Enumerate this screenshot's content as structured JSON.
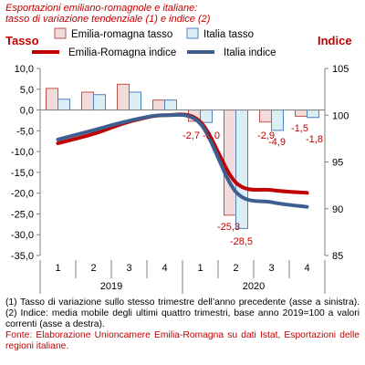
{
  "header": {
    "title_line1": "Esportazioni emiliano-romagnole e italiane:",
    "title_line2": "tasso di variazione tendenziale (1) e indice (2)",
    "left_axis_label": "Tasso",
    "right_axis_label": "Indice"
  },
  "notes": {
    "note1": "(1) Tasso di variazione sullo stesso trimestre dell’anno precedente (asse a sinistra). (2) Indice: media mobile degli ultimi quattro trimestri, base anno 2019=100 a valori correnti (asse a destra).",
    "source": "Fonte: Elaborazione Unioncamere Emilia-Romagna su dati Istat, Esportazioni delle regioni italiane."
  },
  "chart_data": {
    "type": "bar+line",
    "categories": [
      "1",
      "2",
      "3",
      "4",
      "1",
      "2",
      "3",
      "4"
    ],
    "years": [
      {
        "label": "2019",
        "quarters": [
          0,
          1,
          2,
          3
        ]
      },
      {
        "label": "2020",
        "quarters": [
          4,
          5,
          6,
          7
        ]
      }
    ],
    "left_axis": {
      "label": "Tasso",
      "ylim": [
        -35,
        10
      ],
      "ticks": [
        "10,0",
        "5,0",
        "0,0",
        "-5,0",
        "-10,0",
        "-15,0",
        "-20,0",
        "-25,0",
        "-30,0",
        "-35,0"
      ]
    },
    "right_axis": {
      "label": "Indice",
      "ylim": [
        85,
        105
      ],
      "ticks": [
        "105",
        "100",
        "95",
        "90",
        "85"
      ]
    },
    "bar_series": [
      {
        "name": "Emilia-romagna tasso",
        "fill": "#f2dcdb",
        "stroke": "#c0504d",
        "values": [
          5.2,
          4.3,
          6.2,
          2.4,
          -2.7,
          -25.3,
          -2.9,
          -1.5
        ],
        "labels": [
          "",
          "",
          "",
          "",
          "-2,7",
          "-25,3",
          "-2,9",
          "-1,5"
        ]
      },
      {
        "name": "Italia tasso",
        "fill": "#dbeef4",
        "stroke": "#4f81bd",
        "values": [
          2.6,
          3.7,
          4.3,
          2.4,
          -3.0,
          -28.5,
          -4.9,
          -1.8
        ],
        "labels": [
          "",
          "",
          "",
          "",
          "-3,0",
          "-28,5",
          "-4,9",
          "-1,8"
        ]
      }
    ],
    "line_series": [
      {
        "name": "Emilia-Romagna indice",
        "color": "#c00000",
        "values": [
          97.0,
          98.0,
          99.3,
          100.0,
          99.3,
          92.8,
          92.0,
          91.7
        ]
      },
      {
        "name": "Italia indice",
        "color": "#3d5f8f",
        "values": [
          97.4,
          98.4,
          99.4,
          100.0,
          99.1,
          91.8,
          90.7,
          90.2
        ]
      }
    ],
    "grid": false,
    "legend": "top"
  }
}
